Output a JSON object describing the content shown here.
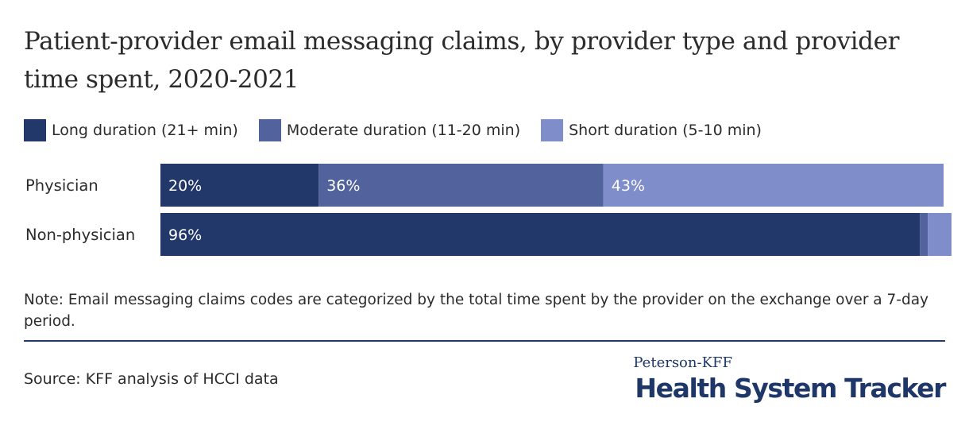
{
  "title": "Patient-provider email messaging claims, by provider type and provider time spent, 2020-2021",
  "legend": [
    {
      "label": "Long duration (21+ min)",
      "color": "#22376a"
    },
    {
      "label": "Moderate duration (11-20 min)",
      "color": "#52629c"
    },
    {
      "label": "Short duration (5-10 min)",
      "color": "#7f8ecb"
    }
  ],
  "chart_data": {
    "type": "bar",
    "orientation": "horizontal",
    "stacked": true,
    "categories": [
      "Physician",
      "Non-physician"
    ],
    "series": [
      {
        "name": "Long duration (21+ min)",
        "values": [
          20,
          96
        ],
        "labels": [
          "20%",
          "96%"
        ],
        "color": "#22376a"
      },
      {
        "name": "Moderate duration (11-20 min)",
        "values": [
          36,
          1
        ],
        "labels": [
          "36%",
          ""
        ],
        "color": "#52629c"
      },
      {
        "name": "Short duration (5-10 min)",
        "values": [
          43,
          3
        ],
        "labels": [
          "43%",
          ""
        ],
        "color": "#7f8ecb"
      }
    ],
    "xlim": [
      0,
      99
    ],
    "grid": false,
    "legend_position": "top-left"
  },
  "note": "Note: Email messaging claims codes are categorized by the total time spent by the provider on the exchange over a 7-day period.",
  "source": "Source: KFF analysis of HCCI data",
  "brand": {
    "top": "Peterson-KFF",
    "main": "Health System Tracker"
  }
}
